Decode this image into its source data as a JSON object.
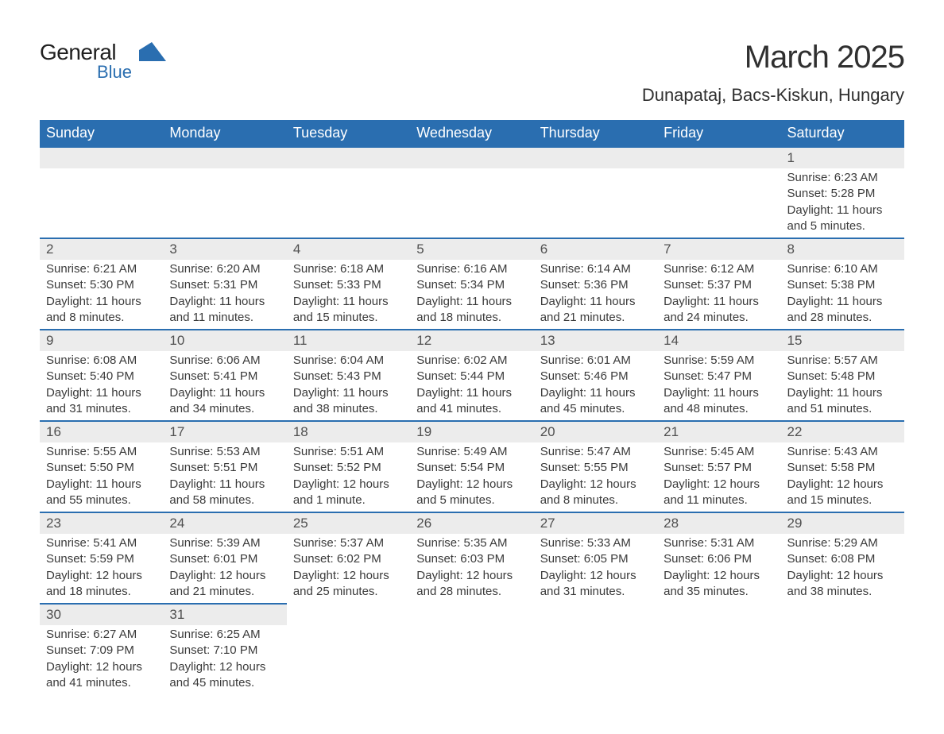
{
  "logo": {
    "general": "General",
    "blue": "Blue"
  },
  "title": "March 2025",
  "location": "Dunapataj, Bacs-Kiskun, Hungary",
  "colors": {
    "header_bg": "#2a6eb0",
    "header_fg": "#ffffff",
    "daybar_bg": "#ececec",
    "rule": "#2a6eb0",
    "text": "#3a3a3a",
    "logo_blue": "#2a6eb0"
  },
  "typography": {
    "title_fontsize": 40,
    "location_fontsize": 22,
    "header_fontsize": 18,
    "daynum_fontsize": 17,
    "body_fontsize": 15
  },
  "daynames": [
    "Sunday",
    "Monday",
    "Tuesday",
    "Wednesday",
    "Thursday",
    "Friday",
    "Saturday"
  ],
  "weeks": [
    [
      null,
      null,
      null,
      null,
      null,
      null,
      {
        "n": "1",
        "sunrise": "6:23 AM",
        "sunset": "5:28 PM",
        "daylight": "11 hours and 5 minutes."
      }
    ],
    [
      {
        "n": "2",
        "sunrise": "6:21 AM",
        "sunset": "5:30 PM",
        "daylight": "11 hours and 8 minutes."
      },
      {
        "n": "3",
        "sunrise": "6:20 AM",
        "sunset": "5:31 PM",
        "daylight": "11 hours and 11 minutes."
      },
      {
        "n": "4",
        "sunrise": "6:18 AM",
        "sunset": "5:33 PM",
        "daylight": "11 hours and 15 minutes."
      },
      {
        "n": "5",
        "sunrise": "6:16 AM",
        "sunset": "5:34 PM",
        "daylight": "11 hours and 18 minutes."
      },
      {
        "n": "6",
        "sunrise": "6:14 AM",
        "sunset": "5:36 PM",
        "daylight": "11 hours and 21 minutes."
      },
      {
        "n": "7",
        "sunrise": "6:12 AM",
        "sunset": "5:37 PM",
        "daylight": "11 hours and 24 minutes."
      },
      {
        "n": "8",
        "sunrise": "6:10 AM",
        "sunset": "5:38 PM",
        "daylight": "11 hours and 28 minutes."
      }
    ],
    [
      {
        "n": "9",
        "sunrise": "6:08 AM",
        "sunset": "5:40 PM",
        "daylight": "11 hours and 31 minutes."
      },
      {
        "n": "10",
        "sunrise": "6:06 AM",
        "sunset": "5:41 PM",
        "daylight": "11 hours and 34 minutes."
      },
      {
        "n": "11",
        "sunrise": "6:04 AM",
        "sunset": "5:43 PM",
        "daylight": "11 hours and 38 minutes."
      },
      {
        "n": "12",
        "sunrise": "6:02 AM",
        "sunset": "5:44 PM",
        "daylight": "11 hours and 41 minutes."
      },
      {
        "n": "13",
        "sunrise": "6:01 AM",
        "sunset": "5:46 PM",
        "daylight": "11 hours and 45 minutes."
      },
      {
        "n": "14",
        "sunrise": "5:59 AM",
        "sunset": "5:47 PM",
        "daylight": "11 hours and 48 minutes."
      },
      {
        "n": "15",
        "sunrise": "5:57 AM",
        "sunset": "5:48 PM",
        "daylight": "11 hours and 51 minutes."
      }
    ],
    [
      {
        "n": "16",
        "sunrise": "5:55 AM",
        "sunset": "5:50 PM",
        "daylight": "11 hours and 55 minutes."
      },
      {
        "n": "17",
        "sunrise": "5:53 AM",
        "sunset": "5:51 PM",
        "daylight": "11 hours and 58 minutes."
      },
      {
        "n": "18",
        "sunrise": "5:51 AM",
        "sunset": "5:52 PM",
        "daylight": "12 hours and 1 minute."
      },
      {
        "n": "19",
        "sunrise": "5:49 AM",
        "sunset": "5:54 PM",
        "daylight": "12 hours and 5 minutes."
      },
      {
        "n": "20",
        "sunrise": "5:47 AM",
        "sunset": "5:55 PM",
        "daylight": "12 hours and 8 minutes."
      },
      {
        "n": "21",
        "sunrise": "5:45 AM",
        "sunset": "5:57 PM",
        "daylight": "12 hours and 11 minutes."
      },
      {
        "n": "22",
        "sunrise": "5:43 AM",
        "sunset": "5:58 PM",
        "daylight": "12 hours and 15 minutes."
      }
    ],
    [
      {
        "n": "23",
        "sunrise": "5:41 AM",
        "sunset": "5:59 PM",
        "daylight": "12 hours and 18 minutes."
      },
      {
        "n": "24",
        "sunrise": "5:39 AM",
        "sunset": "6:01 PM",
        "daylight": "12 hours and 21 minutes."
      },
      {
        "n": "25",
        "sunrise": "5:37 AM",
        "sunset": "6:02 PM",
        "daylight": "12 hours and 25 minutes."
      },
      {
        "n": "26",
        "sunrise": "5:35 AM",
        "sunset": "6:03 PM",
        "daylight": "12 hours and 28 minutes."
      },
      {
        "n": "27",
        "sunrise": "5:33 AM",
        "sunset": "6:05 PM",
        "daylight": "12 hours and 31 minutes."
      },
      {
        "n": "28",
        "sunrise": "5:31 AM",
        "sunset": "6:06 PM",
        "daylight": "12 hours and 35 minutes."
      },
      {
        "n": "29",
        "sunrise": "5:29 AM",
        "sunset": "6:08 PM",
        "daylight": "12 hours and 38 minutes."
      }
    ],
    [
      {
        "n": "30",
        "sunrise": "6:27 AM",
        "sunset": "7:09 PM",
        "daylight": "12 hours and 41 minutes."
      },
      {
        "n": "31",
        "sunrise": "6:25 AM",
        "sunset": "7:10 PM",
        "daylight": "12 hours and 45 minutes."
      },
      null,
      null,
      null,
      null,
      null
    ]
  ],
  "labels": {
    "sunrise": "Sunrise: ",
    "sunset": "Sunset: ",
    "daylight": "Daylight: "
  }
}
